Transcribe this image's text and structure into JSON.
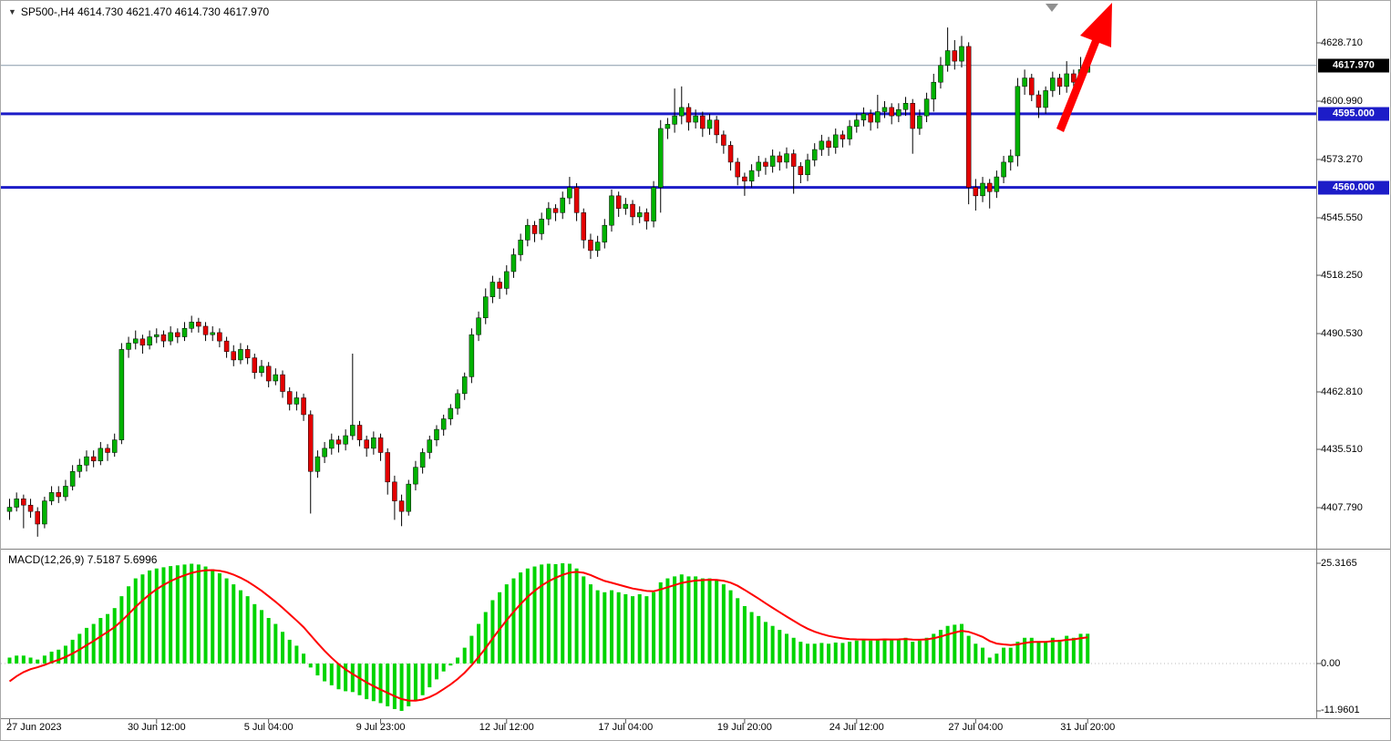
{
  "header": {
    "symbol": "SP500-",
    "timeframe": "H4",
    "title_text": "SP500-,H4 4614.730 4621.470 4614.730 4617.970"
  },
  "colors": {
    "bull": "#00b200",
    "bear": "#e30000",
    "wick": "#000000",
    "macd_hist": "#00d400",
    "signal_line": "#ff0000",
    "level_line": "#1c1cc8",
    "tag_level_bg": "#1c1cc8",
    "tag_last_bg": "#000000",
    "price_line": "#8899aa",
    "arrow": "#ff0000",
    "shift_marker": "#909090",
    "separator": "#808080",
    "axis_text": "#000000"
  },
  "chart_data": {
    "type": "candlestick",
    "symbol": "SP500-",
    "timeframe": "H4",
    "last_ohlc": {
      "open": 4614.73,
      "high": 4621.47,
      "low": 4614.73,
      "close": 4617.97
    },
    "price_axis": {
      "ticks": [
        {
          "value": 4628.71,
          "label": "4628.710"
        },
        {
          "value": 4600.99,
          "label": "4600.990"
        },
        {
          "value": 4573.27,
          "label": "4573.270"
        },
        {
          "value": 4545.55,
          "label": "4545.550"
        },
        {
          "value": 4518.25,
          "label": "4518.250"
        },
        {
          "value": 4490.53,
          "label": "4490.530"
        },
        {
          "value": 4462.81,
          "label": "4462.810"
        },
        {
          "value": 4435.51,
          "label": "4435.510"
        },
        {
          "value": 4407.79,
          "label": "4407.790"
        }
      ],
      "tags": [
        {
          "value": 4617.97,
          "label": "4617.970",
          "type": "last"
        },
        {
          "value": 4595.0,
          "label": "4595.000",
          "type": "level"
        },
        {
          "value": 4560.0,
          "label": "4560.000",
          "type": "level"
        }
      ]
    },
    "levels": [
      {
        "value": 4595.0,
        "label": "4595.000"
      },
      {
        "value": 4560.0,
        "label": "4560.000"
      }
    ],
    "x_axis": {
      "labels": [
        {
          "text": "27 Jun 2023",
          "index": 0
        },
        {
          "text": "30 Jun 12:00",
          "index": 21
        },
        {
          "text": "5 Jul 04:00",
          "index": 37
        },
        {
          "text": "9 Jul 23:00",
          "index": 53
        },
        {
          "text": "12 Jul 12:00",
          "index": 71
        },
        {
          "text": "17 Jul 04:00",
          "index": 88
        },
        {
          "text": "19 Jul 20:00",
          "index": 105
        },
        {
          "text": "24 Jul 12:00",
          "index": 121
        },
        {
          "text": "27 Jul 04:00",
          "index": 138
        },
        {
          "text": "31 Jul 20:00",
          "index": 154
        }
      ]
    },
    "candles": [
      [
        4406,
        4412,
        4402,
        4408
      ],
      [
        4408,
        4415,
        4406,
        4412
      ],
      [
        4412,
        4414,
        4398,
        4409
      ],
      [
        4409,
        4412,
        4403,
        4406
      ],
      [
        4406,
        4408,
        4394,
        4400
      ],
      [
        4400,
        4413,
        4398,
        4411
      ],
      [
        4411,
        4418,
        4409,
        4415
      ],
      [
        4415,
        4418,
        4410,
        4413
      ],
      [
        4413,
        4421,
        4411,
        4418
      ],
      [
        4418,
        4428,
        4416,
        4425
      ],
      [
        4425,
        4431,
        4422,
        4428
      ],
      [
        4428,
        4435,
        4425,
        4432
      ],
      [
        4432,
        4435,
        4427,
        4430
      ],
      [
        4430,
        4439,
        4428,
        4436
      ],
      [
        4436,
        4438,
        4430,
        4434
      ],
      [
        4434,
        4443,
        4432,
        4440
      ],
      [
        4440,
        4486,
        4438,
        4483
      ],
      [
        4483,
        4489,
        4479,
        4486
      ],
      [
        4486,
        4492,
        4483,
        4488
      ],
      [
        4488,
        4490,
        4481,
        4485
      ],
      [
        4485,
        4492,
        4483,
        4489
      ],
      [
        4489,
        4493,
        4486,
        4490
      ],
      [
        4490,
        4492,
        4484,
        4487
      ],
      [
        4487,
        4494,
        4485,
        4491
      ],
      [
        4491,
        4493,
        4486,
        4489
      ],
      [
        4489,
        4496,
        4487,
        4493
      ],
      [
        4493,
        4499,
        4491,
        4496
      ],
      [
        4496,
        4498,
        4491,
        4494
      ],
      [
        4494,
        4496,
        4487,
        4490
      ],
      [
        4490,
        4494,
        4487,
        4491
      ],
      [
        4491,
        4493,
        4484,
        4487
      ],
      [
        4487,
        4489,
        4479,
        4482
      ],
      [
        4482,
        4485,
        4475,
        4478
      ],
      [
        4478,
        4486,
        4476,
        4483
      ],
      [
        4483,
        4485,
        4476,
        4479
      ],
      [
        4479,
        4481,
        4469,
        4472
      ],
      [
        4472,
        4478,
        4470,
        4475
      ],
      [
        4475,
        4477,
        4465,
        4468
      ],
      [
        4468,
        4474,
        4466,
        4471
      ],
      [
        4471,
        4473,
        4460,
        4463
      ],
      [
        4463,
        4465,
        4454,
        4457
      ],
      [
        4457,
        4463,
        4454,
        4460
      ],
      [
        4460,
        4462,
        4449,
        4452
      ],
      [
        4452,
        4454,
        4405,
        4425
      ],
      [
        4425,
        4435,
        4422,
        4432
      ],
      [
        4432,
        4439,
        4429,
        4436
      ],
      [
        4436,
        4443,
        4433,
        4440
      ],
      [
        4440,
        4442,
        4434,
        4438
      ],
      [
        4438,
        4445,
        4435,
        4442
      ],
      [
        4442,
        4481,
        4440,
        4447
      ],
      [
        4447,
        4449,
        4437,
        4440
      ],
      [
        4440,
        4442,
        4432,
        4436
      ],
      [
        4436,
        4444,
        4433,
        4441
      ],
      [
        4441,
        4443,
        4430,
        4434
      ],
      [
        4434,
        4436,
        4414,
        4420
      ],
      [
        4420,
        4423,
        4402,
        4411
      ],
      [
        4411,
        4414,
        4399,
        4406
      ],
      [
        4406,
        4421,
        4404,
        4419
      ],
      [
        4419,
        4430,
        4416,
        4427
      ],
      [
        4427,
        4436,
        4424,
        4434
      ],
      [
        4434,
        4442,
        4431,
        4440
      ],
      [
        4440,
        4447,
        4437,
        4445
      ],
      [
        4445,
        4452,
        4442,
        4450
      ],
      [
        4450,
        4457,
        4447,
        4455
      ],
      [
        4455,
        4464,
        4452,
        4462
      ],
      [
        4462,
        4472,
        4459,
        4470
      ],
      [
        4470,
        4493,
        4467,
        4490
      ],
      [
        4490,
        4501,
        4487,
        4498
      ],
      [
        4498,
        4512,
        4495,
        4508
      ],
      [
        4508,
        4518,
        4505,
        4515
      ],
      [
        4515,
        4517,
        4507,
        4512
      ],
      [
        4512,
        4523,
        4509,
        4520
      ],
      [
        4520,
        4531,
        4517,
        4528
      ],
      [
        4528,
        4538,
        4525,
        4535
      ],
      [
        4535,
        4545,
        4532,
        4542
      ],
      [
        4542,
        4544,
        4534,
        4538
      ],
      [
        4538,
        4548,
        4535,
        4545
      ],
      [
        4545,
        4553,
        4542,
        4550
      ],
      [
        4550,
        4552,
        4544,
        4548
      ],
      [
        4548,
        4558,
        4545,
        4555
      ],
      [
        4555,
        4565,
        4552,
        4560
      ],
      [
        4560,
        4562,
        4544,
        4548
      ],
      [
        4548,
        4550,
        4531,
        4535
      ],
      [
        4535,
        4538,
        4526,
        4530
      ],
      [
        4530,
        4537,
        4527,
        4534
      ],
      [
        4534,
        4545,
        4531,
        4542
      ],
      [
        4542,
        4559,
        4539,
        4556
      ],
      [
        4556,
        4558,
        4546,
        4550
      ],
      [
        4550,
        4555,
        4547,
        4552
      ],
      [
        4552,
        4554,
        4542,
        4546
      ],
      [
        4546,
        4551,
        4543,
        4548
      ],
      [
        4548,
        4550,
        4540,
        4544
      ],
      [
        4544,
        4563,
        4541,
        4560
      ],
      [
        4560,
        4592,
        4548,
        4588
      ],
      [
        4588,
        4593,
        4583,
        4590
      ],
      [
        4590,
        4607,
        4586,
        4594
      ],
      [
        4594,
        4608,
        4590,
        4598
      ],
      [
        4598,
        4600,
        4587,
        4591
      ],
      [
        4591,
        4597,
        4588,
        4594
      ],
      [
        4594,
        4596,
        4584,
        4588
      ],
      [
        4588,
        4595,
        4585,
        4592
      ],
      [
        4592,
        4594,
        4581,
        4585
      ],
      [
        4585,
        4587,
        4576,
        4580
      ],
      [
        4580,
        4582,
        4568,
        4572
      ],
      [
        4572,
        4574,
        4561,
        4565
      ],
      [
        4565,
        4567,
        4556,
        4563
      ],
      [
        4563,
        4571,
        4560,
        4568
      ],
      [
        4568,
        4575,
        4565,
        4572
      ],
      [
        4572,
        4574,
        4566,
        4570
      ],
      [
        4570,
        4578,
        4567,
        4575
      ],
      [
        4575,
        4577,
        4568,
        4572
      ],
      [
        4572,
        4579,
        4569,
        4576
      ],
      [
        4576,
        4578,
        4557,
        4570
      ],
      [
        4570,
        4572,
        4562,
        4566
      ],
      [
        4566,
        4576,
        4563,
        4573
      ],
      [
        4573,
        4581,
        4570,
        4578
      ],
      [
        4578,
        4585,
        4575,
        4582
      ],
      [
        4582,
        4584,
        4575,
        4579
      ],
      [
        4579,
        4588,
        4576,
        4585
      ],
      [
        4585,
        4587,
        4579,
        4583
      ],
      [
        4583,
        4592,
        4580,
        4589
      ],
      [
        4589,
        4595,
        4586,
        4592
      ],
      [
        4592,
        4598,
        4589,
        4595
      ],
      [
        4595,
        4597,
        4587,
        4591
      ],
      [
        4591,
        4604,
        4588,
        4596
      ],
      [
        4596,
        4601,
        4593,
        4598
      ],
      [
        4598,
        4600,
        4590,
        4594
      ],
      [
        4594,
        4600,
        4591,
        4597
      ],
      [
        4597,
        4603,
        4594,
        4600
      ],
      [
        4600,
        4602,
        4576,
        4588
      ],
      [
        4588,
        4597,
        4585,
        4594
      ],
      [
        4594,
        4605,
        4591,
        4602
      ],
      [
        4602,
        4614,
        4596,
        4610
      ],
      [
        4610,
        4622,
        4607,
        4618
      ],
      [
        4618,
        4636,
        4615,
        4625
      ],
      [
        4625,
        4630,
        4616,
        4620
      ],
      [
        4620,
        4632,
        4617,
        4627
      ],
      [
        4627,
        4629,
        4552,
        4560
      ],
      [
        4560,
        4564,
        4549,
        4556
      ],
      [
        4556,
        4565,
        4553,
        4562
      ],
      [
        4562,
        4564,
        4550,
        4558
      ],
      [
        4558,
        4568,
        4555,
        4565
      ],
      [
        4565,
        4575,
        4562,
        4572
      ],
      [
        4572,
        4578,
        4568,
        4575
      ],
      [
        4575,
        4612,
        4570,
        4608
      ],
      [
        4608,
        4616,
        4604,
        4612
      ],
      [
        4612,
        4614,
        4601,
        4604
      ],
      [
        4604,
        4606,
        4593,
        4598
      ],
      [
        4598,
        4608,
        4595,
        4606
      ],
      [
        4606,
        4615,
        4603,
        4612
      ],
      [
        4612,
        4614,
        4604,
        4608
      ],
      [
        4608,
        4620,
        4605,
        4614
      ],
      [
        4614,
        4616,
        4606,
        4610
      ],
      [
        4610,
        4622,
        4607,
        4616
      ],
      [
        4614.73,
        4621.47,
        4614.73,
        4617.97
      ]
    ],
    "indicator": {
      "name": "MACD(12,26,9)",
      "label_full": "MACD(12,26,9) 7.5187 5.6996",
      "macd_last": 7.5187,
      "signal_last": 5.6996,
      "signal_period": 9,
      "signal_seed": -6,
      "axis_ticks": [
        {
          "value": 25.3165,
          "label": "25.3165"
        },
        {
          "value": 0,
          "label": "0.00"
        },
        {
          "value": -11.9601,
          "label": "-11.9601"
        }
      ],
      "histogram": [
        1.5,
        2,
        2,
        1.5,
        1,
        2,
        3,
        3.5,
        4.5,
        6,
        7.5,
        9,
        10,
        11.5,
        12.5,
        14,
        17,
        19.5,
        21.5,
        22.5,
        23.5,
        24,
        24.3,
        24.6,
        24.8,
        25,
        25.2,
        25,
        24.5,
        23.8,
        22.8,
        21.5,
        20,
        18.5,
        17,
        15,
        13.5,
        11.5,
        10,
        8,
        6,
        4.5,
        2.5,
        -1,
        -3,
        -4.5,
        -5.5,
        -6.5,
        -7,
        -7.2,
        -8,
        -9,
        -9.5,
        -10,
        -10.8,
        -11.5,
        -11.9601,
        -10.8,
        -9.5,
        -8,
        -6,
        -4,
        -2,
        -0.5,
        1.5,
        4,
        7,
        10,
        13,
        16,
        18,
        20,
        21.5,
        23,
        24,
        24.5,
        25,
        25.2,
        25.1,
        25.3165,
        25.2,
        24,
        22,
        20,
        18.5,
        18,
        18.5,
        18,
        17.5,
        17,
        17.5,
        17,
        18,
        20.5,
        21.5,
        22,
        22.5,
        22,
        22,
        21.5,
        21.5,
        21,
        20,
        18.5,
        16.5,
        14.5,
        13,
        12,
        10.5,
        9.5,
        8.5,
        7.5,
        6.5,
        5.5,
        5,
        5,
        5.2,
        5,
        5.3,
        5.2,
        5.5,
        5.8,
        6,
        5.8,
        6.2,
        6.3,
        6,
        6.2,
        6.5,
        5.5,
        5.8,
        6.5,
        7.5,
        8.5,
        9.5,
        9.8,
        10,
        7,
        5,
        4,
        1.5,
        2.5,
        4,
        4,
        5.5,
        6.5,
        6.5,
        5.5,
        5.5,
        6.5,
        6,
        7,
        6.5,
        7.5,
        7.5187
      ]
    },
    "annotations": {
      "trend_arrow": {
        "shape": "arrow-up-right",
        "color": "#ff0000"
      },
      "shift_marker": {
        "shape": "triangle-down",
        "color": "#909090"
      }
    }
  }
}
